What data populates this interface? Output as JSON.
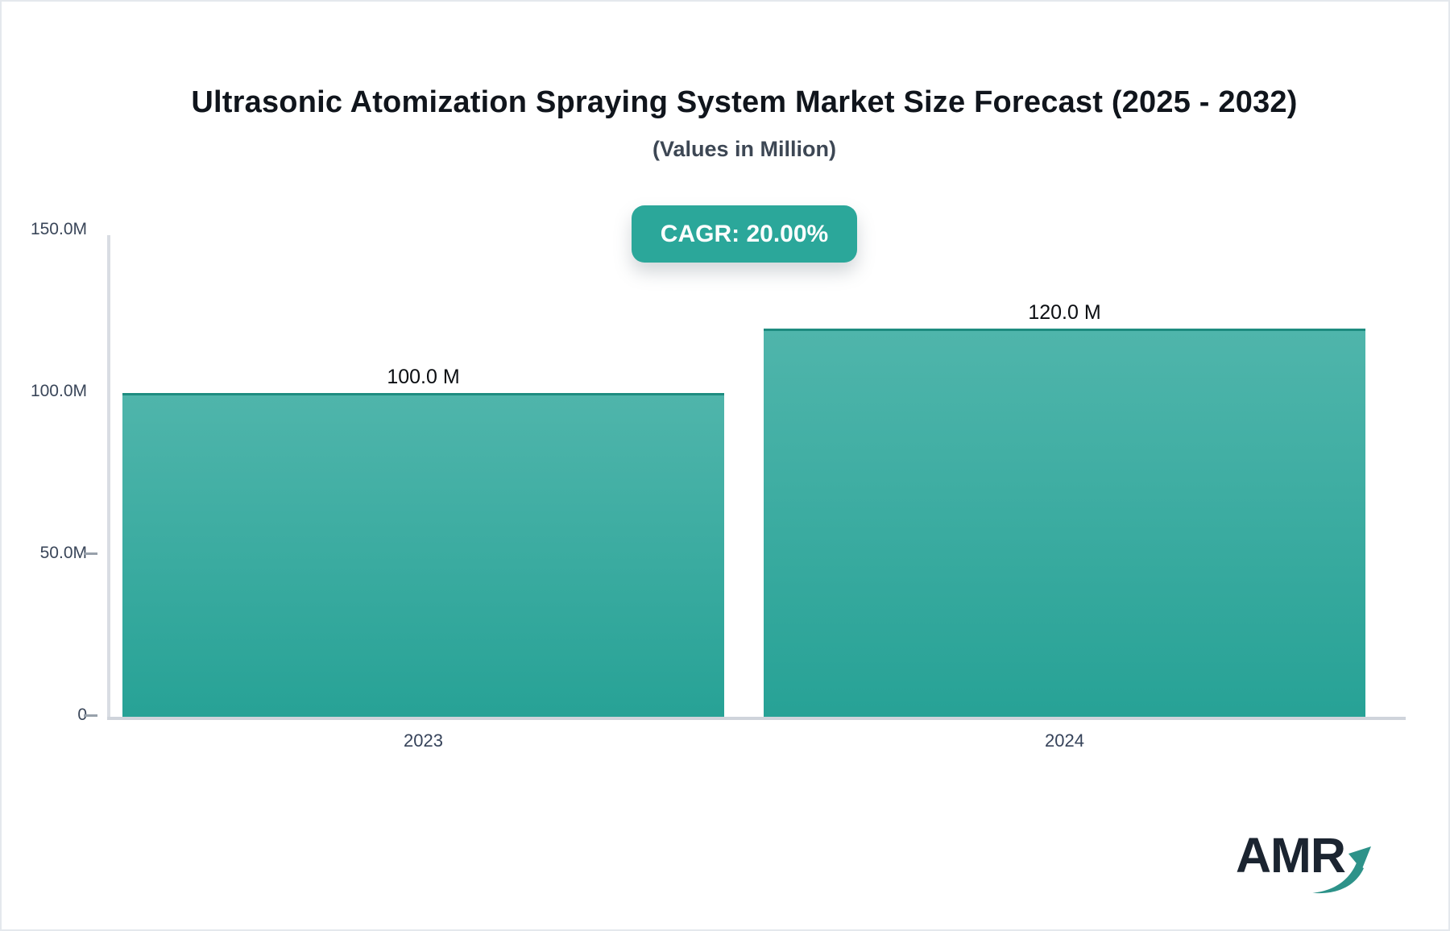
{
  "header": {
    "title": "Ultrasonic Atomization Spraying System Market Size Forecast (2025 - 2032)",
    "subtitle": "(Values in Million)",
    "cagr_label": "CAGR: 20.00%"
  },
  "chart_data": {
    "type": "bar",
    "title": "Ultrasonic Atomization Spraying System Market Size Forecast (2025 - 2032)",
    "subtitle": "(Values in Million)",
    "annotation": "CAGR: 20.00%",
    "categories": [
      "2023",
      "2024"
    ],
    "values": [
      100.0,
      120.0
    ],
    "value_labels": [
      "100.0 M",
      "120.0 M"
    ],
    "xlabel": "",
    "ylabel": "",
    "ylim": [
      0,
      150
    ],
    "yticks": [
      {
        "label": "150.0M",
        "value": 150,
        "tick_dash": false
      },
      {
        "label": "100.0M",
        "value": 100,
        "tick_dash": false
      },
      {
        "label": "50.0M",
        "value": 50,
        "tick_dash": true
      },
      {
        "label": "0",
        "value": 0,
        "tick_dash": true
      }
    ],
    "grid": false,
    "legend": false
  },
  "logo": {
    "text": "AMR",
    "icon": "growth-arrow-icon"
  },
  "colors": {
    "bar_gradient_top": "#4fb5ab",
    "bar_gradient_bottom": "#27a296",
    "bar_top_border": "#1e8c80",
    "badge_bg": "#2ba79a",
    "badge_text": "#ffffff",
    "axis_line": "#d9dde3",
    "baseline": "#cfd4db",
    "tick": "#98a1ab",
    "axis_label": "#3a4659",
    "value_label": "#0b0e12",
    "title": "#10151c",
    "subtitle": "#3d4754",
    "logo_text": "#1b2430",
    "logo_arrow": "#2d9289"
  }
}
